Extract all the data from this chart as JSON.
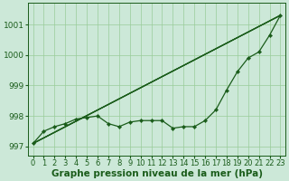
{
  "xlabel": "Graphe pression niveau de la mer (hPa)",
  "x": [
    0,
    1,
    2,
    3,
    4,
    5,
    6,
    7,
    8,
    9,
    10,
    11,
    12,
    13,
    14,
    15,
    16,
    17,
    18,
    19,
    20,
    21,
    22,
    23
  ],
  "jagged": [
    997.1,
    997.5,
    997.65,
    997.75,
    997.9,
    997.95,
    998.0,
    997.75,
    997.65,
    997.8,
    997.85,
    997.85,
    997.85,
    997.6,
    997.65,
    997.65,
    997.85,
    998.2,
    998.85,
    999.45,
    999.9,
    1000.1,
    1000.65,
    1001.3
  ],
  "line_color": "#1a5c1a",
  "background_color": "#cce8d8",
  "plot_bg_color": "#cce8d8",
  "grid_color": "#99cc99",
  "ylim": [
    996.7,
    1001.7
  ],
  "yticks": [
    997,
    998,
    999,
    1000,
    1001
  ],
  "xticks": [
    0,
    1,
    2,
    3,
    4,
    5,
    6,
    7,
    8,
    9,
    10,
    11,
    12,
    13,
    14,
    15,
    16,
    17,
    18,
    19,
    20,
    21,
    22,
    23
  ],
  "xlabel_fontsize": 7.5,
  "tick_fontsize": 6.5,
  "marker": "D",
  "marker_size": 2.2,
  "linewidth": 0.9
}
